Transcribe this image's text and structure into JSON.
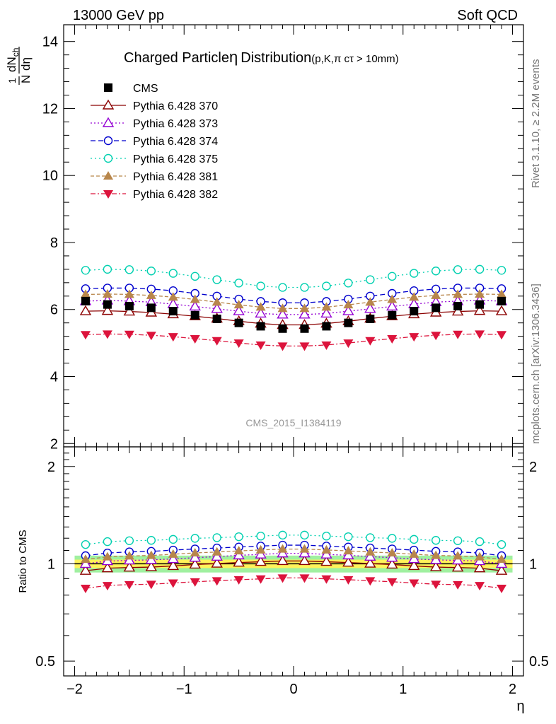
{
  "header": {
    "energy_label": "13000 GeV pp",
    "category_label": "Soft QCD",
    "title": "Charged Particle",
    "title_eta": "η",
    "title_suffix": "Distribution",
    "title_note": "(p,K,π cτ > 10mm)",
    "right_label_top": "Rivet 3.1.10, ≥ 2.2M events",
    "right_label_bottom": "mcplots.cern.ch [arXiv:1306.3436]",
    "analysis_id": "CMS_2015_I1384119"
  },
  "chart_data": {
    "type": "scatter",
    "x": [
      -1.9,
      -1.7,
      -1.5,
      -1.3,
      -1.1,
      -0.9,
      -0.7,
      -0.5,
      -0.3,
      -0.1,
      0.1,
      0.3,
      0.5,
      0.7,
      0.9,
      1.1,
      1.3,
      1.5,
      1.7,
      1.9
    ],
    "xlabel": "η",
    "xlim": [
      -2.1,
      2.1
    ],
    "x_ticks": [
      "−2",
      "−1",
      "0",
      "1",
      "2"
    ],
    "main_panel": {
      "ylabel": "1/N dN_ch/dη",
      "ylim": [
        1.9,
        14.5
      ],
      "y_ticks": [
        "2",
        "4",
        "6",
        "8",
        "10",
        "12",
        "14"
      ]
    },
    "ratio_panel": {
      "ylabel": "Ratio to CMS",
      "log_scale": true,
      "ylim": [
        0.45,
        2.3
      ],
      "y_ticks": [
        "0.5",
        "1",
        "2"
      ]
    },
    "series": [
      {
        "name": "CMS",
        "color": "#000000",
        "marker": "filled-square",
        "values": [
          6.25,
          6.15,
          6.1,
          6.05,
          5.95,
          5.83,
          5.72,
          5.6,
          5.5,
          5.43,
          5.43,
          5.5,
          5.6,
          5.72,
          5.83,
          5.95,
          6.05,
          6.1,
          6.15,
          6.25
        ]
      },
      {
        "name": "Pythia 6.428 370",
        "color": "#8b0000",
        "marker": "open-triangle-up",
        "values": [
          5.95,
          5.96,
          5.94,
          5.91,
          5.86,
          5.8,
          5.73,
          5.65,
          5.58,
          5.54,
          5.54,
          5.58,
          5.65,
          5.73,
          5.8,
          5.86,
          5.91,
          5.94,
          5.96,
          5.95
        ]
      },
      {
        "name": "Pythia 6.428 373",
        "color": "#9400d3",
        "marker": "open-triangle-up",
        "values": [
          6.25,
          6.27,
          6.25,
          6.22,
          6.16,
          6.09,
          6.02,
          5.95,
          5.88,
          5.85,
          5.85,
          5.88,
          5.95,
          6.02,
          6.09,
          6.16,
          6.22,
          6.25,
          6.27,
          6.25
        ]
      },
      {
        "name": "Pythia 6.428 374",
        "color": "#0000cd",
        "marker": "open-circle",
        "values": [
          6.62,
          6.64,
          6.64,
          6.61,
          6.56,
          6.48,
          6.4,
          6.31,
          6.24,
          6.2,
          6.2,
          6.24,
          6.31,
          6.4,
          6.48,
          6.56,
          6.61,
          6.64,
          6.64,
          6.62
        ]
      },
      {
        "name": "Pythia 6.428 375",
        "color": "#00d0b0",
        "marker": "open-circle",
        "values": [
          7.17,
          7.2,
          7.19,
          7.15,
          7.08,
          6.99,
          6.89,
          6.79,
          6.7,
          6.66,
          6.66,
          6.7,
          6.79,
          6.89,
          6.99,
          7.08,
          7.15,
          7.19,
          7.2,
          7.17
        ]
      },
      {
        "name": "Pythia 6.428 381",
        "color": "#b8864b",
        "marker": "filled-triangle-up",
        "values": [
          6.45,
          6.46,
          6.45,
          6.42,
          6.37,
          6.3,
          6.22,
          6.14,
          6.07,
          6.03,
          6.03,
          6.07,
          6.14,
          6.22,
          6.3,
          6.37,
          6.42,
          6.45,
          6.46,
          6.45
        ]
      },
      {
        "name": "Pythia 6.428 382",
        "color": "#dc143c",
        "marker": "filled-triangle-down",
        "values": [
          5.25,
          5.27,
          5.26,
          5.23,
          5.19,
          5.13,
          5.07,
          5.0,
          4.94,
          4.91,
          4.91,
          4.94,
          5.0,
          5.07,
          5.13,
          5.19,
          5.23,
          5.26,
          5.27,
          5.25
        ]
      }
    ],
    "band_colors": {
      "inner": "#fff35a",
      "outer": "#a0f0a0"
    },
    "ratio_band": {
      "inner_frac": 0.03,
      "outer_frac": 0.06
    }
  }
}
